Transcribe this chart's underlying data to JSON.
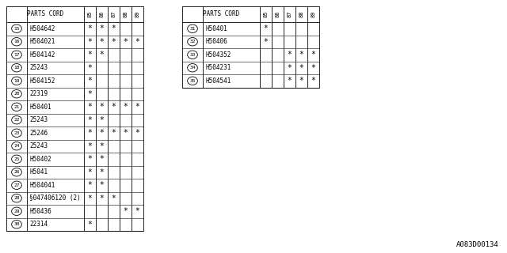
{
  "bg_color": "#ffffff",
  "font_size": 5.5,
  "col_headers": [
    "85",
    "86",
    "87",
    "88",
    "89"
  ],
  "table1": {
    "title": "PARTS CORD",
    "rows": [
      {
        "num": "15",
        "part": "H504642",
        "marks": [
          1,
          1,
          1,
          0,
          0
        ]
      },
      {
        "num": "16",
        "part": "H504021",
        "marks": [
          1,
          1,
          1,
          1,
          1
        ]
      },
      {
        "num": "17",
        "part": "H504142",
        "marks": [
          1,
          1,
          0,
          0,
          0
        ]
      },
      {
        "num": "18",
        "part": "25243",
        "marks": [
          1,
          0,
          0,
          0,
          0
        ]
      },
      {
        "num": "19",
        "part": "H504152",
        "marks": [
          1,
          0,
          0,
          0,
          0
        ]
      },
      {
        "num": "20",
        "part": "22319",
        "marks": [
          1,
          0,
          0,
          0,
          0
        ]
      },
      {
        "num": "21",
        "part": "H50401",
        "marks": [
          1,
          1,
          1,
          1,
          1
        ]
      },
      {
        "num": "22",
        "part": "25243",
        "marks": [
          1,
          1,
          0,
          0,
          0
        ]
      },
      {
        "num": "23",
        "part": "25246",
        "marks": [
          1,
          1,
          1,
          1,
          1
        ]
      },
      {
        "num": "24",
        "part": "25243",
        "marks": [
          1,
          1,
          0,
          0,
          0
        ]
      },
      {
        "num": "25",
        "part": "H50402",
        "marks": [
          1,
          1,
          0,
          0,
          0
        ]
      },
      {
        "num": "26",
        "part": "H5041",
        "marks": [
          1,
          1,
          0,
          0,
          0
        ]
      },
      {
        "num": "27",
        "part": "H504041",
        "marks": [
          1,
          1,
          0,
          0,
          0
        ]
      },
      {
        "num": "28",
        "part": "§047406120 (2)",
        "marks": [
          1,
          1,
          1,
          0,
          0
        ]
      },
      {
        "num": "29",
        "part": "H50436",
        "marks": [
          0,
          0,
          0,
          1,
          1
        ]
      },
      {
        "num": "30",
        "part": "22314",
        "marks": [
          1,
          0,
          0,
          0,
          0
        ]
      }
    ]
  },
  "table2": {
    "title": "PARTS CORD",
    "rows": [
      {
        "num": "31",
        "part": "H50401",
        "marks": [
          1,
          0,
          0,
          0,
          0
        ]
      },
      {
        "num": "32",
        "part": "H50406",
        "marks": [
          1,
          0,
          0,
          0,
          0
        ]
      },
      {
        "num": "33",
        "part": "H504352",
        "marks": [
          0,
          0,
          1,
          1,
          1
        ]
      },
      {
        "num": "34",
        "part": "H504231",
        "marks": [
          0,
          0,
          1,
          1,
          1
        ]
      },
      {
        "num": "35",
        "part": "H504541",
        "marks": [
          0,
          0,
          1,
          1,
          1
        ]
      }
    ]
  },
  "watermark": "A083D00134",
  "watermark_fs": 6.5
}
